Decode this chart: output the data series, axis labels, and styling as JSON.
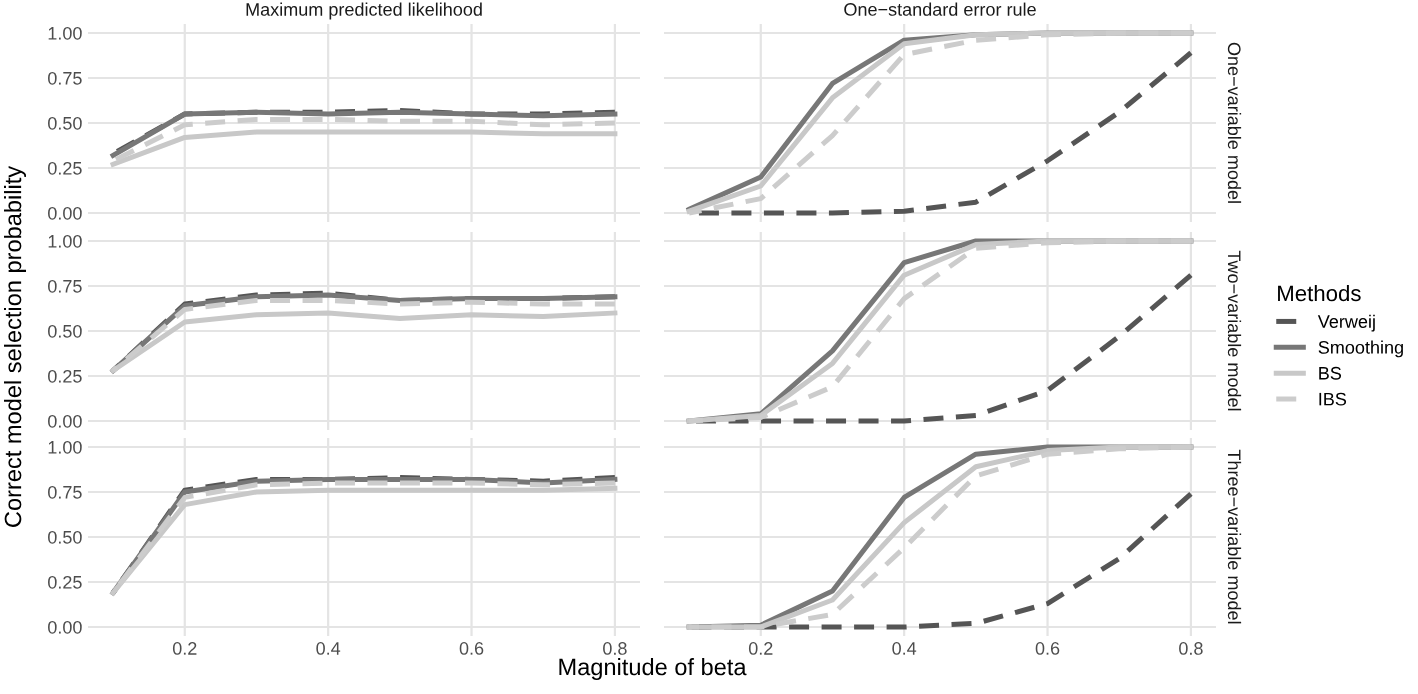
{
  "chart_data": [
    {
      "type": "line",
      "title": "Maximum predicted likelihood",
      "x": [
        0.1,
        0.2,
        0.3,
        0.4,
        0.5,
        0.6,
        0.7,
        0.8
      ],
      "xlim": [
        0.065,
        0.835
      ],
      "xticks": [
        0.2,
        0.4,
        0.6,
        0.8
      ],
      "ylim": [
        -0.05,
        1.05
      ],
      "yticks": [
        {
          "value": 0,
          "label": "0.00"
        },
        {
          "value": 0.25,
          "label": "0.25"
        },
        {
          "value": 0.5,
          "label": "0.50"
        },
        {
          "value": 0.75,
          "label": "0.75"
        },
        {
          "value": 1,
          "label": "1.00"
        }
      ],
      "grid": true,
      "tick_labels": "y",
      "series": [
        {
          "color": "#555555",
          "line_style": "dashed",
          "values": [
            0.33,
            0.55,
            0.56,
            0.56,
            0.57,
            0.55,
            0.55,
            0.56
          ]
        },
        {
          "color": "#777777",
          "line_style": "solid",
          "values": [
            0.32,
            0.55,
            0.56,
            0.55,
            0.56,
            0.55,
            0.54,
            0.55
          ]
        },
        {
          "color": "#c8c8c8",
          "line_style": "solid",
          "values": [
            0.27,
            0.42,
            0.45,
            0.45,
            0.45,
            0.45,
            0.44,
            0.44
          ]
        },
        {
          "color": "#cccccc",
          "line_style": "dashed",
          "values": [
            0.29,
            0.49,
            0.52,
            0.52,
            0.51,
            0.51,
            0.49,
            0.5
          ]
        }
      ]
    },
    {
      "type": "line",
      "title": "One−standard error rule",
      "annotations": [
        "One−variable model"
      ],
      "x": [
        0.1,
        0.2,
        0.3,
        0.4,
        0.5,
        0.6,
        0.7,
        0.8
      ],
      "xlim": [
        0.065,
        0.835
      ],
      "xticks": [
        0.2,
        0.4,
        0.6,
        0.8
      ],
      "ylim": [
        -0.05,
        1.05
      ],
      "yticks": [
        0,
        0.25,
        0.5,
        0.75,
        1
      ],
      "grid": true,
      "tick_labels": false,
      "series": [
        {
          "color": "#555555",
          "line_style": "dashed",
          "values": [
            0,
            0,
            0,
            0.01,
            0.06,
            0.29,
            0.56,
            0.89
          ]
        },
        {
          "color": "#777777",
          "line_style": "solid",
          "values": [
            0.02,
            0.2,
            0.72,
            0.96,
            0.99,
            1,
            1,
            1
          ]
        },
        {
          "color": "#c8c8c8",
          "line_style": "solid",
          "values": [
            0.01,
            0.15,
            0.64,
            0.94,
            0.99,
            1,
            1,
            1
          ]
        },
        {
          "color": "#cccccc",
          "line_style": "dashed",
          "values": [
            0,
            0.08,
            0.43,
            0.88,
            0.96,
            0.99,
            1,
            1
          ]
        }
      ]
    },
    {
      "type": "line",
      "ylabel": "Correct model selection probability",
      "x": [
        0.1,
        0.2,
        0.3,
        0.4,
        0.5,
        0.6,
        0.7,
        0.8
      ],
      "xlim": [
        0.065,
        0.835
      ],
      "xticks": [
        0.2,
        0.4,
        0.6,
        0.8
      ],
      "ylim": [
        -0.05,
        1.05
      ],
      "yticks": [
        {
          "value": 0,
          "label": "0.00"
        },
        {
          "value": 0.25,
          "label": "0.25"
        },
        {
          "value": 0.5,
          "label": "0.50"
        },
        {
          "value": 0.75,
          "label": "0.75"
        },
        {
          "value": 1,
          "label": "1.00"
        }
      ],
      "grid": true,
      "tick_labels": "y",
      "series": [
        {
          "color": "#555555",
          "line_style": "dashed",
          "values": [
            0.28,
            0.65,
            0.7,
            0.71,
            0.67,
            0.68,
            0.68,
            0.69
          ]
        },
        {
          "color": "#777777",
          "line_style": "solid",
          "values": [
            0.28,
            0.64,
            0.69,
            0.7,
            0.67,
            0.68,
            0.68,
            0.69
          ]
        },
        {
          "color": "#c8c8c8",
          "line_style": "solid",
          "values": [
            0.28,
            0.55,
            0.59,
            0.6,
            0.57,
            0.59,
            0.58,
            0.6
          ]
        },
        {
          "color": "#cccccc",
          "line_style": "dashed",
          "values": [
            0.28,
            0.62,
            0.67,
            0.67,
            0.65,
            0.66,
            0.65,
            0.65
          ]
        }
      ]
    },
    {
      "type": "line",
      "annotations": [
        "Two−variable model"
      ],
      "legend": "right",
      "legend_title": "Methods",
      "x": [
        0.1,
        0.2,
        0.3,
        0.4,
        0.5,
        0.6,
        0.7,
        0.8
      ],
      "xlim": [
        0.065,
        0.835
      ],
      "xticks": [
        0.2,
        0.4,
        0.6,
        0.8
      ],
      "ylim": [
        -0.05,
        1.05
      ],
      "yticks": [
        0,
        0.25,
        0.5,
        0.75,
        1
      ],
      "grid": true,
      "tick_labels": false,
      "series": [
        {
          "name": "Verweij",
          "color": "#555555",
          "line_style": "dashed",
          "values": [
            0,
            0,
            0,
            0,
            0.03,
            0.17,
            0.47,
            0.81
          ]
        },
        {
          "name": "Smoothing",
          "color": "#777777",
          "line_style": "solid",
          "values": [
            0,
            0.04,
            0.39,
            0.88,
            1,
            1,
            1,
            1
          ]
        },
        {
          "name": "BS",
          "color": "#c8c8c8",
          "line_style": "solid",
          "values": [
            0,
            0.03,
            0.32,
            0.81,
            0.98,
            1,
            1,
            1
          ]
        },
        {
          "name": "IBS",
          "color": "#cccccc",
          "line_style": "dashed",
          "values": [
            0,
            0.02,
            0.19,
            0.68,
            0.96,
            0.99,
            1,
            1
          ]
        }
      ]
    },
    {
      "type": "line",
      "xlabel": "Magnitude of beta",
      "x": [
        0.1,
        0.2,
        0.3,
        0.4,
        0.5,
        0.6,
        0.7,
        0.8
      ],
      "xlim": [
        0.065,
        0.835
      ],
      "xticks": [
        0.2,
        0.4,
        0.6,
        0.8
      ],
      "ylim": [
        -0.05,
        1.05
      ],
      "yticks": [
        {
          "value": 0,
          "label": "0.00"
        },
        {
          "value": 0.25,
          "label": "0.25"
        },
        {
          "value": 0.5,
          "label": "0.50"
        },
        {
          "value": 0.75,
          "label": "0.75"
        },
        {
          "value": 1,
          "label": "1.00"
        }
      ],
      "grid": true,
      "series": [
        {
          "color": "#555555",
          "line_style": "dashed",
          "values": [
            0.19,
            0.76,
            0.82,
            0.82,
            0.83,
            0.82,
            0.81,
            0.83
          ]
        },
        {
          "color": "#777777",
          "line_style": "solid",
          "values": [
            0.19,
            0.75,
            0.81,
            0.82,
            0.82,
            0.82,
            0.8,
            0.82
          ]
        },
        {
          "color": "#c8c8c8",
          "line_style": "solid",
          "values": [
            0.19,
            0.68,
            0.75,
            0.76,
            0.76,
            0.76,
            0.76,
            0.77
          ]
        },
        {
          "color": "#cccccc",
          "line_style": "dashed",
          "values": [
            0.19,
            0.72,
            0.79,
            0.8,
            0.8,
            0.8,
            0.79,
            0.8
          ]
        }
      ]
    },
    {
      "type": "line",
      "annotations": [
        "Three−variable model"
      ],
      "x": [
        0.1,
        0.2,
        0.3,
        0.4,
        0.5,
        0.6,
        0.7,
        0.8
      ],
      "xlim": [
        0.065,
        0.835
      ],
      "xticks": [
        0.2,
        0.4,
        0.6,
        0.8
      ],
      "ylim": [
        -0.05,
        1.05
      ],
      "yticks": [
        0,
        0.25,
        0.5,
        0.75,
        1
      ],
      "grid": true,
      "tick_labels": "x",
      "series": [
        {
          "color": "#555555",
          "line_style": "dashed",
          "values": [
            0,
            0,
            0,
            0,
            0.02,
            0.13,
            0.38,
            0.74
          ]
        },
        {
          "color": "#777777",
          "line_style": "solid",
          "values": [
            0,
            0.01,
            0.2,
            0.72,
            0.96,
            1,
            1,
            1
          ]
        },
        {
          "color": "#c8c8c8",
          "line_style": "solid",
          "values": [
            0,
            0,
            0.15,
            0.58,
            0.89,
            0.98,
            1,
            1
          ]
        },
        {
          "color": "#cccccc",
          "line_style": "dashed",
          "values": [
            0,
            0,
            0.07,
            0.44,
            0.84,
            0.96,
            0.99,
            1
          ]
        }
      ]
    }
  ]
}
